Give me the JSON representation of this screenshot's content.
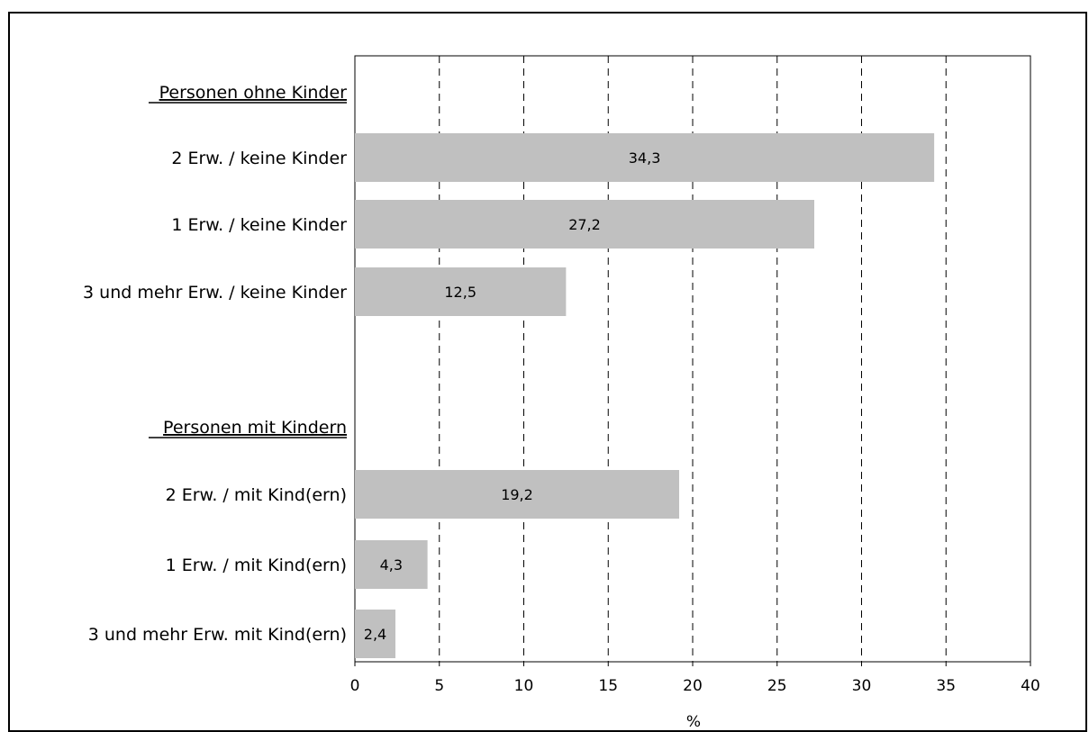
{
  "chart_data": {
    "type": "bar",
    "orientation": "horizontal",
    "xlabel": "%",
    "xlim": [
      0,
      40
    ],
    "xticks": [
      0,
      5,
      10,
      15,
      20,
      25,
      30,
      35,
      40
    ],
    "grid": "vertical dashed",
    "bar_color": "#c0c0c0",
    "rows": [
      {
        "label": "Personen ohne Kinder",
        "kind": "group"
      },
      {
        "label": "2 Erw.  / keine Kinder",
        "value": 34.3,
        "value_label": "34,3"
      },
      {
        "label": "1 Erw.  / keine Kinder",
        "value": 27.2,
        "value_label": "27,2"
      },
      {
        "label": "3 und mehr Erw. / keine Kinder",
        "value": 12.5,
        "value_label": "12,5"
      },
      {
        "label": "",
        "kind": "spacer"
      },
      {
        "label": "Personen mit Kindern",
        "kind": "group"
      },
      {
        "label": "2 Erw. / mit Kind(ern)",
        "value": 19.2,
        "value_label": "19,2"
      },
      {
        "label": "1 Erw.  / mit Kind(ern)",
        "value": 4.3,
        "value_label": "4,3"
      },
      {
        "label": "3 und mehr Erw. mit Kind(ern)",
        "value": 2.4,
        "value_label": "2,4"
      }
    ]
  }
}
